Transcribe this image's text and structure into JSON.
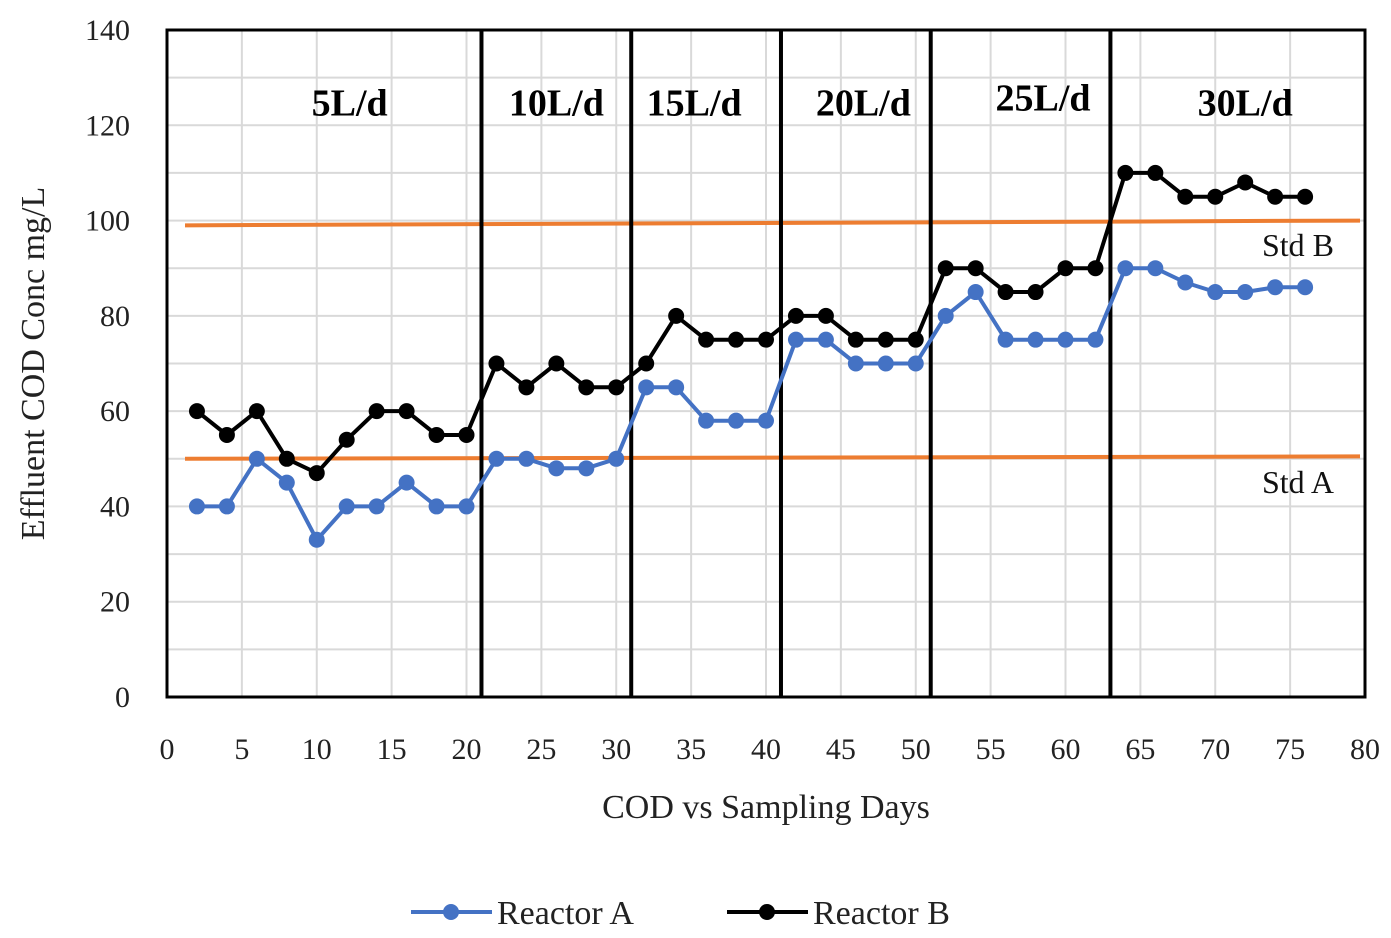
{
  "chart_data": {
    "type": "line",
    "title": "",
    "xlabel": "COD vs Sampling Days",
    "ylabel": "Effluent COD Conc mg/L",
    "xlim": [
      0,
      80
    ],
    "ylim": [
      0,
      140
    ],
    "xticks": [
      0,
      5,
      10,
      15,
      20,
      25,
      30,
      35,
      40,
      45,
      50,
      55,
      60,
      65,
      70,
      75,
      80
    ],
    "yticks": [
      0,
      20,
      40,
      60,
      80,
      100,
      120,
      140
    ],
    "x_tick_labels": [
      "0",
      "5",
      "10",
      "15",
      "20",
      "25",
      "30",
      "35",
      "40",
      "45",
      "50",
      "55",
      "60",
      "65",
      "70",
      "75",
      "80"
    ],
    "y_tick_labels": [
      "0",
      "20",
      "40",
      "60",
      "80",
      "100",
      "120",
      "140"
    ],
    "grid": true,
    "legend_position": "bottom",
    "series": [
      {
        "name": "Reactor A",
        "color": "#4472C4",
        "x": [
          2,
          4,
          6,
          8,
          10,
          12,
          14,
          16,
          18,
          20,
          22,
          24,
          26,
          28,
          30,
          32,
          34,
          36,
          38,
          40,
          42,
          44,
          46,
          48,
          50,
          52,
          54,
          56,
          58,
          60,
          62,
          64,
          66,
          68,
          70,
          72,
          74,
          76
        ],
        "values": [
          40,
          40,
          50,
          45,
          33,
          40,
          40,
          45,
          40,
          40,
          50,
          50,
          48,
          48,
          50,
          65,
          65,
          58,
          58,
          58,
          75,
          75,
          70,
          70,
          70,
          80,
          85,
          75,
          75,
          75,
          75,
          90,
          90,
          87,
          85,
          85,
          86,
          86
        ]
      },
      {
        "name": "Reactor B",
        "color": "#000000",
        "x": [
          2,
          4,
          6,
          8,
          10,
          12,
          14,
          16,
          18,
          20,
          22,
          24,
          26,
          28,
          30,
          32,
          34,
          36,
          38,
          40,
          42,
          44,
          46,
          48,
          50,
          52,
          54,
          56,
          58,
          60,
          62,
          64,
          66,
          68,
          70,
          72,
          74,
          76
        ],
        "values": [
          60,
          55,
          60,
          50,
          47,
          54,
          60,
          60,
          55,
          55,
          70,
          65,
          70,
          65,
          65,
          70,
          80,
          75,
          75,
          75,
          80,
          80,
          75,
          75,
          75,
          90,
          90,
          85,
          85,
          90,
          90,
          110,
          110,
          105,
          105,
          108,
          105,
          105
        ]
      }
    ],
    "reference_lines": [
      {
        "name": "Std B",
        "label": "Std B",
        "x": [
          0,
          80
        ],
        "y": [
          99,
          100
        ],
        "color": "#ED7D31"
      },
      {
        "name": "Std A",
        "label": "Std A",
        "x": [
          0,
          80
        ],
        "y": [
          50,
          50.5
        ],
        "color": "#ED7D31"
      }
    ],
    "phase_dividers": [
      21,
      31,
      41,
      51,
      63
    ],
    "phases": [
      {
        "label": "5L/d",
        "x": 12.2,
        "y": 125
      },
      {
        "label": "10L/d",
        "x": 26,
        "y": 125
      },
      {
        "label": "15L/d",
        "x": 35.2,
        "y": 125
      },
      {
        "label": "20L/d",
        "x": 46.5,
        "y": 125
      },
      {
        "label": "25L/d",
        "x": 58.5,
        "y": 126
      },
      {
        "label": "30L/d",
        "x": 72,
        "y": 125
      }
    ]
  }
}
